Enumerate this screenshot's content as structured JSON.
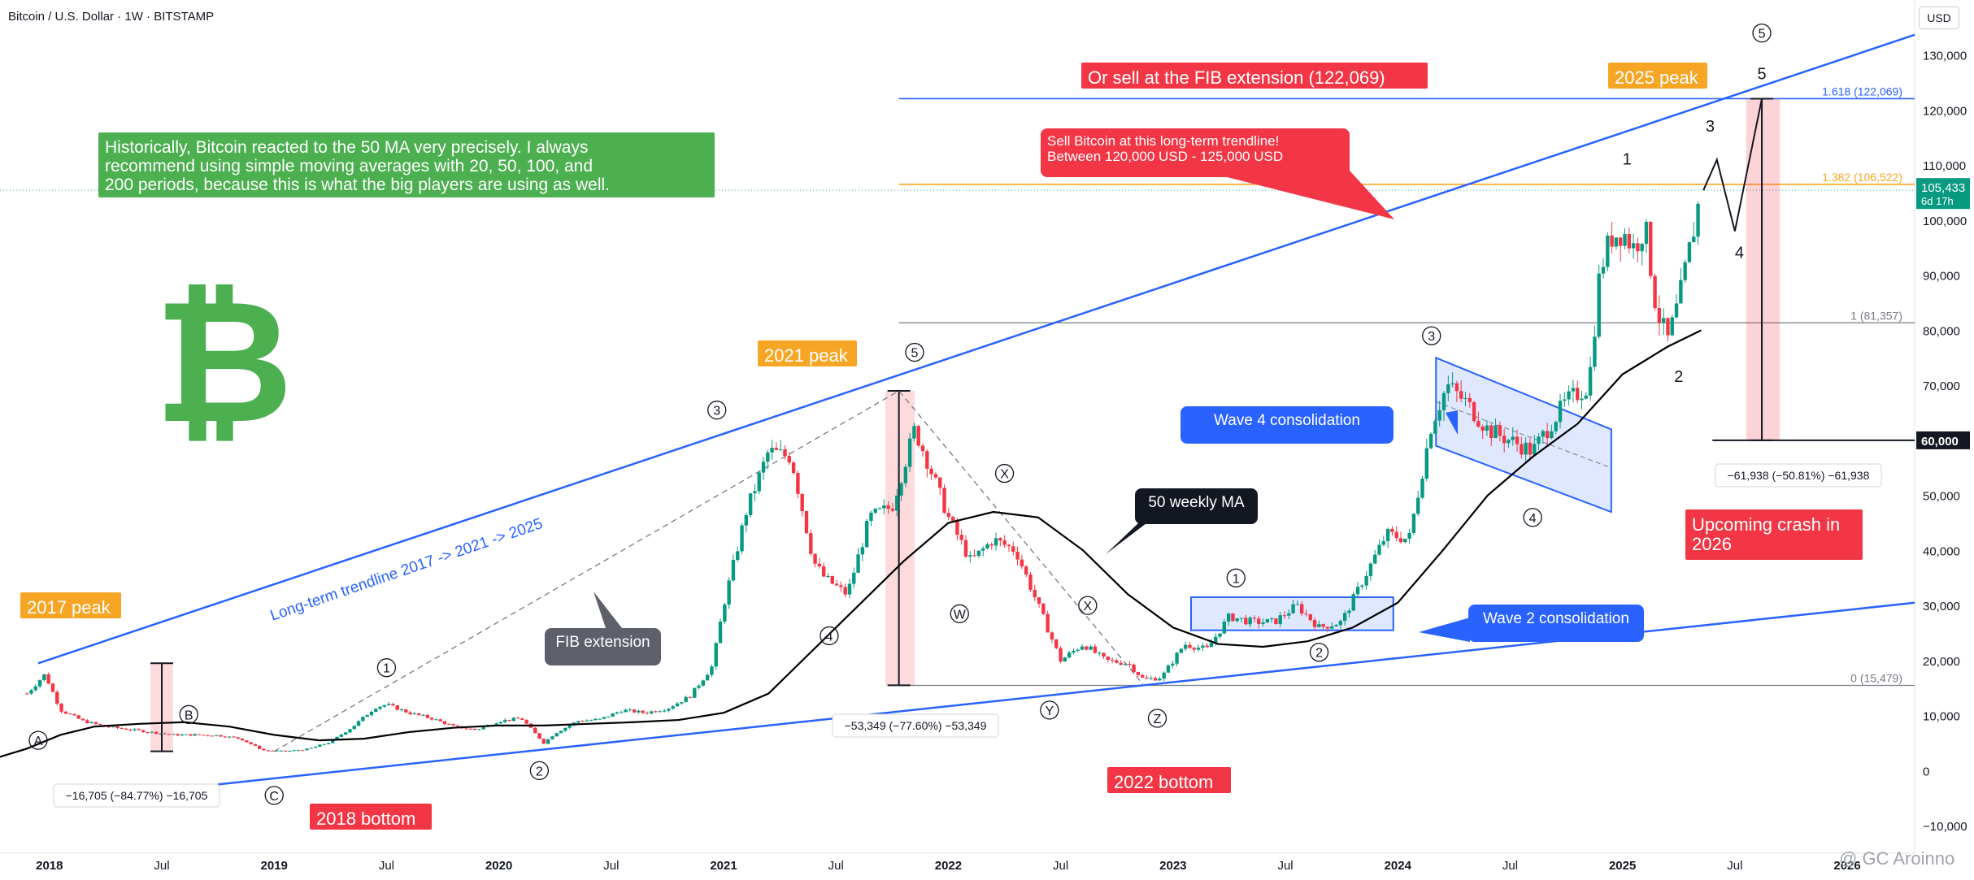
{
  "header": {
    "symbol_title": "Bitcoin / U.S. Dollar · 1W · BITSTAMP",
    "currency_button": "USD"
  },
  "watermark": "@ GC Aroinno",
  "colors": {
    "up": "#089981",
    "down": "#f23645",
    "trendline": "#2962ff",
    "ma": "#000000",
    "fib_orange": "#f7a525",
    "red_label": "#f23645",
    "green_label": "#4caf50",
    "blue_label": "#2962ff"
  },
  "chart_data": {
    "type": "line",
    "title": "Bitcoin / U.S. Dollar · 1W · BITSTAMP",
    "xlabel": "",
    "ylabel": "USD",
    "x_tick_labels": [
      "2018",
      "Jul",
      "2019",
      "Jul",
      "2020",
      "Jul",
      "2021",
      "Jul",
      "2022",
      "Jul",
      "2023",
      "Jul",
      "2024",
      "Jul",
      "2025",
      "Jul",
      "2026"
    ],
    "x_ticks": [
      2018.0,
      2018.5,
      2019.0,
      2019.5,
      2020.0,
      2020.5,
      2021.0,
      2021.5,
      2022.0,
      2022.5,
      2023.0,
      2023.5,
      2024.0,
      2024.5,
      2025.0,
      2025.5,
      2026.0
    ],
    "y_tick_labels": [
      "130,000",
      "120,000",
      "110,000",
      "100,000",
      "90,000",
      "80,000",
      "70,000",
      "60,000",
      "50,000",
      "40,000",
      "30,000",
      "20,000",
      "10,000",
      "0",
      "−10,000"
    ],
    "y_ticks": [
      130000,
      120000,
      110000,
      100000,
      90000,
      80000,
      70000,
      60000,
      50000,
      40000,
      30000,
      20000,
      10000,
      0,
      -10000
    ],
    "ylim": [
      -15000,
      140000
    ],
    "xlim": [
      2017.78,
      2026.3
    ],
    "series": [
      {
        "name": "",
        "style": "price",
        "x": [
          2017.9,
          2017.98,
          2018.05,
          2018.15,
          2018.25,
          2018.35,
          2018.45,
          2018.55,
          2018.65,
          2018.75,
          2018.85,
          2018.95,
          2019.05,
          2019.15,
          2019.25,
          2019.35,
          2019.45,
          2019.5,
          2019.6,
          2019.7,
          2019.8,
          2019.9,
          2020.0,
          2020.1,
          2020.2,
          2020.25,
          2020.35,
          2020.45,
          2020.55,
          2020.65,
          2020.75,
          2020.85,
          2020.95,
          2021.0,
          2021.1,
          2021.2,
          2021.3,
          2021.4,
          2021.45,
          2021.55,
          2021.65,
          2021.75,
          2021.85,
          2021.9,
          2022.0,
          2022.1,
          2022.2,
          2022.3,
          2022.4,
          2022.5,
          2022.6,
          2022.7,
          2022.8,
          2022.87,
          2022.95,
          2023.05,
          2023.15,
          2023.25,
          2023.35,
          2023.45,
          2023.55,
          2023.65,
          2023.75,
          2023.85,
          2023.95,
          2024.05,
          2024.15,
          2024.22,
          2024.3,
          2024.4,
          2024.5,
          2024.6,
          2024.68,
          2024.75,
          2024.85,
          2024.9,
          2024.95,
          2025.0,
          2025.05,
          2025.1,
          2025.15,
          2025.2,
          2025.25,
          2025.3,
          2025.35
        ],
        "values": [
          14000,
          17500,
          11000,
          9000,
          8000,
          7500,
          7000,
          6500,
          6500,
          6400,
          5800,
          3700,
          3500,
          3900,
          5200,
          8000,
          11500,
          12000,
          10500,
          9500,
          8000,
          7400,
          9000,
          9500,
          5000,
          6800,
          9000,
          9300,
          11000,
          10500,
          11300,
          13500,
          19000,
          30000,
          47000,
          58000,
          57000,
          38000,
          35000,
          32000,
          46000,
          48000,
          62000,
          57000,
          46000,
          38000,
          42000,
          40000,
          30000,
          20000,
          23000,
          20000,
          19500,
          16500,
          17000,
          23000,
          22000,
          28000,
          27000,
          27000,
          30000,
          26000,
          27000,
          35000,
          43000,
          42000,
          63000,
          70000,
          67000,
          62000,
          60000,
          58000,
          63000,
          67000,
          70000,
          91000,
          97000,
          98000,
          95000,
          99000,
          84000,
          78000,
          85000,
          95000,
          105433
        ]
      },
      {
        "name": "50 weekly MA",
        "style": "ma",
        "x": [
          2017.78,
          2017.9,
          2018.05,
          2018.2,
          2018.4,
          2018.6,
          2018.8,
          2019.0,
          2019.2,
          2019.4,
          2019.6,
          2019.8,
          2020.0,
          2020.2,
          2020.4,
          2020.6,
          2020.8,
          2021.0,
          2021.2,
          2021.4,
          2021.6,
          2021.8,
          2022.0,
          2022.2,
          2022.4,
          2022.6,
          2022.8,
          2023.0,
          2023.2,
          2023.4,
          2023.6,
          2023.8,
          2024.0,
          2024.2,
          2024.4,
          2024.6,
          2024.8,
          2025.0,
          2025.2,
          2025.35
        ],
        "values": [
          2500,
          4000,
          6500,
          8000,
          8500,
          8800,
          8000,
          6500,
          5500,
          5800,
          7000,
          7800,
          8200,
          8200,
          8500,
          8800,
          9200,
          10500,
          14000,
          22000,
          30000,
          38000,
          45000,
          47000,
          46000,
          40000,
          32000,
          26000,
          23000,
          22500,
          23500,
          26000,
          30500,
          40000,
          50000,
          57000,
          63000,
          72000,
          77000,
          80000
        ]
      }
    ],
    "hlines": [
      {
        "value": 122069,
        "label": "1.618 (122,069)"
      },
      {
        "value": 106522,
        "label": "1.382 (106,522)"
      },
      {
        "value": 81357,
        "label": "1 (81,357)"
      },
      {
        "value": 15479,
        "label": "0 (15,479)"
      }
    ],
    "price_tag": {
      "value": 105433,
      "label": "105,433",
      "sublabel": "6d 17h"
    },
    "level_tag": {
      "value": 60000,
      "label": "60,000"
    },
    "annotations": {
      "green_note": [
        "Historically, Bitcoin reacted to the 50 MA very precisely. I always",
        "recommend using simple moving averages with 20, 50, 100, and",
        "200 periods, because this is what the big players are using as well."
      ],
      "fib_sell": "Or sell at the FIB extension (122,069)",
      "peak_2025": "2025 peak",
      "sell_bubble": [
        "Sell Bitcoin at this long-term trendline!",
        "Between 120,000 USD - 125,000 USD"
      ],
      "peak_2021": "2021 peak",
      "peak_2017": "2017 peak",
      "bottom_2018": "2018 bottom",
      "bottom_2022": "2022 bottom",
      "trendline_label": "Long-term trendline 2017 -> 2021 -> 2025",
      "fib_extension": "FIB extension",
      "ma_label": "50 weekly MA",
      "wave4": "Wave 4 consolidation",
      "wave2": "Wave 2 consolidation",
      "crash": [
        "Upcoming crash in",
        "2026"
      ],
      "measure_2018": "−16,705 (−84.77%) −16,705",
      "measure_2022": "−53,349 (−77.60%) −53,349",
      "measure_2026": "−61,938 (−50.81%) −61,938",
      "wave_labels": [
        "A",
        "B",
        "C",
        "1",
        "2",
        "3",
        "4",
        "5",
        "W",
        "X",
        "X",
        "Y",
        "Z",
        "1",
        "2",
        "3",
        "4",
        "1",
        "2",
        "3",
        "4",
        "5",
        "5"
      ]
    },
    "grid": false,
    "legend": "none"
  }
}
